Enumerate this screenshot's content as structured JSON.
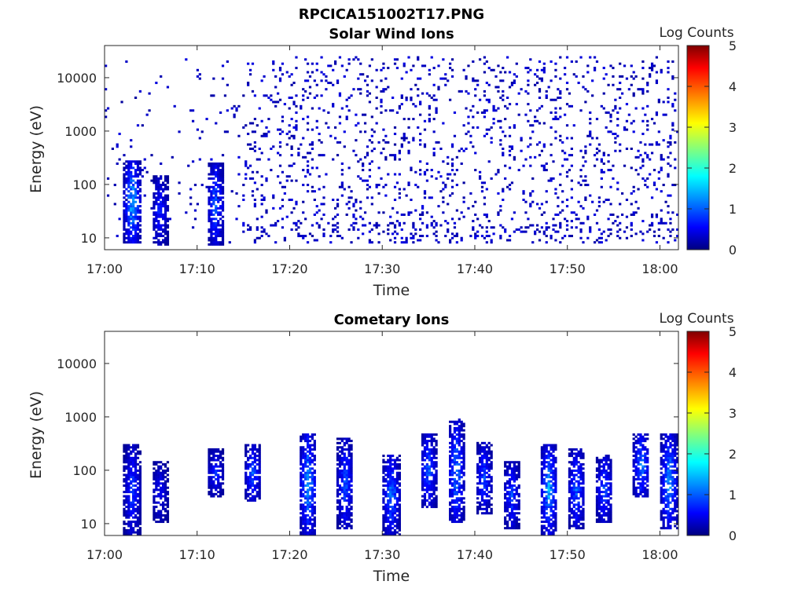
{
  "figure_title": "RPCICA151002T17.PNG",
  "colors": {
    "axis": "#262626",
    "colormap": "jet",
    "colormap_stops": [
      "#00007f",
      "#0000ff",
      "#00ffff",
      "#ffff00",
      "#ff0000",
      "#7f0000"
    ]
  },
  "chart_data": [
    {
      "type": "heatmap",
      "title": "Solar Wind Ions",
      "xlabel": "Time",
      "ylabel": "Energy (eV)",
      "yscale": "log",
      "xlim": [
        "17:00",
        "18:02"
      ],
      "ylim": [
        6,
        40000
      ],
      "xticks": [
        "17:00",
        "17:10",
        "17:20",
        "17:30",
        "17:40",
        "17:50",
        "18:00"
      ],
      "yticks": [
        10,
        100,
        1000,
        10000
      ],
      "ytick_labels": [
        "10",
        "100",
        "1000",
        "10000"
      ],
      "colorbar": {
        "label": "Log Counts",
        "range": [
          0,
          5
        ],
        "ticks": [
          "0",
          "1",
          "2",
          "3",
          "4",
          "5"
        ]
      },
      "description": "Sparse low-count speckle (Log Counts 0-1) across 10 eV–20 keV, denser after 17:15; brief enhancements near 17:03, 17:06, 17:12 at 10–300 eV reaching ~2",
      "features": [
        {
          "time": "17:03",
          "e_low": 8,
          "e_high": 280,
          "max_log_counts": 2.0
        },
        {
          "time": "17:06",
          "e_low": 7,
          "e_high": 150,
          "max_log_counts": 1.0
        },
        {
          "time": "17:12",
          "e_low": 7,
          "e_high": 260,
          "max_log_counts": 1.4
        }
      ]
    },
    {
      "type": "heatmap",
      "title": "Cometary Ions",
      "xlabel": "Time",
      "ylabel": "Energy (eV)",
      "yscale": "log",
      "xlim": [
        "17:00",
        "18:02"
      ],
      "ylim": [
        6,
        40000
      ],
      "xticks": [
        "17:00",
        "17:10",
        "17:20",
        "17:30",
        "17:40",
        "17:50",
        "18:00"
      ],
      "yticks": [
        10,
        100,
        1000,
        10000
      ],
      "ytick_labels": [
        "10",
        "100",
        "1000",
        "10000"
      ],
      "colorbar": {
        "label": "Log Counts",
        "range": [
          0,
          5
        ],
        "ticks": [
          "0",
          "1",
          "2",
          "3",
          "4",
          "5"
        ]
      },
      "description": "Periodic bursts of cometary ions between ~6 eV and ~800 eV with peak Log Counts near 2",
      "features": [
        {
          "time": "17:03",
          "e_low": 6,
          "e_high": 300,
          "max_log_counts": 1.2
        },
        {
          "time": "17:06",
          "e_low": 10,
          "e_high": 150,
          "max_log_counts": 0.8
        },
        {
          "time": "17:12",
          "e_low": 30,
          "e_high": 250,
          "max_log_counts": 1.0
        },
        {
          "time": "17:16",
          "e_low": 25,
          "e_high": 300,
          "max_log_counts": 1.3
        },
        {
          "time": "17:22",
          "e_low": 6,
          "e_high": 500,
          "max_log_counts": 1.8
        },
        {
          "time": "17:26",
          "e_low": 8,
          "e_high": 400,
          "max_log_counts": 1.3
        },
        {
          "time": "17:31",
          "e_low": 6,
          "e_high": 200,
          "max_log_counts": 1.6
        },
        {
          "time": "17:35",
          "e_low": 20,
          "e_high": 500,
          "max_log_counts": 1.4
        },
        {
          "time": "17:38",
          "e_low": 10,
          "e_high": 900,
          "max_log_counts": 1.6
        },
        {
          "time": "17:41",
          "e_low": 15,
          "e_high": 350,
          "max_log_counts": 1.2
        },
        {
          "time": "17:44",
          "e_low": 8,
          "e_high": 150,
          "max_log_counts": 1.2
        },
        {
          "time": "17:48",
          "e_low": 6,
          "e_high": 300,
          "max_log_counts": 1.8
        },
        {
          "time": "17:51",
          "e_low": 8,
          "e_high": 250,
          "max_log_counts": 1.4
        },
        {
          "time": "17:54",
          "e_low": 10,
          "e_high": 200,
          "max_log_counts": 1.3
        },
        {
          "time": "17:58",
          "e_low": 30,
          "e_high": 500,
          "max_log_counts": 1.6
        },
        {
          "time": "18:01",
          "e_low": 8,
          "e_high": 500,
          "max_log_counts": 1.8
        }
      ]
    }
  ]
}
